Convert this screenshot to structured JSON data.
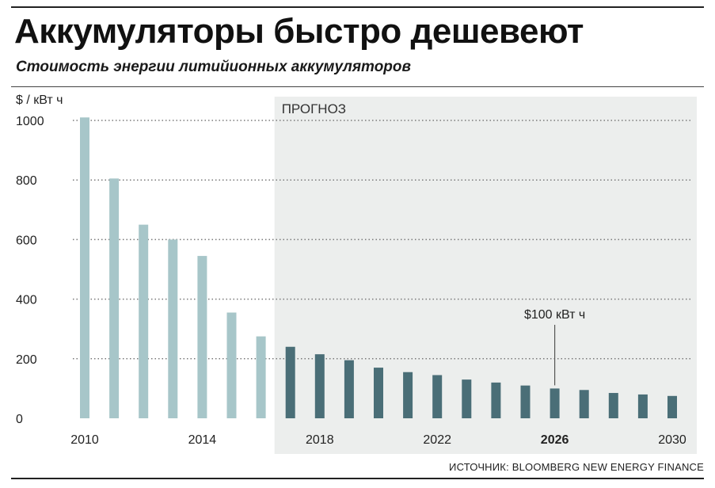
{
  "header": {
    "title": "Аккумуляторы быстро дешевеют",
    "subtitle": "Стоимость энергии литийионных аккумуляторов"
  },
  "footer": {
    "source": "ИСТОЧНИК: BLOOMBERG NEW ENERGY FINANCE"
  },
  "colors": {
    "historical": "#a7c6c9",
    "forecast": "#4a6e77",
    "forecast_background": "#eceeed",
    "grid": "#7a7a7a"
  },
  "chart_data": {
    "type": "bar",
    "title": "Аккумуляторы быстро дешевеют",
    "subtitle": "Стоимость энергии литийионных аккумуляторов",
    "ylabel": "$ / кВт ч",
    "xlabel": "",
    "ylim": [
      0,
      1000
    ],
    "yticks": [
      0,
      200,
      400,
      600,
      800,
      1000
    ],
    "grid": true,
    "categories": [
      2010,
      2011,
      2012,
      2013,
      2014,
      2015,
      2016,
      2017,
      2018,
      2019,
      2020,
      2021,
      2022,
      2023,
      2024,
      2025,
      2026,
      2027,
      2028,
      2029,
      2030
    ],
    "values": [
      1010,
      805,
      650,
      600,
      545,
      355,
      275,
      240,
      215,
      195,
      170,
      155,
      145,
      130,
      120,
      110,
      100,
      95,
      85,
      80,
      75
    ],
    "x_tick_labels": [
      {
        "year": 2010,
        "label": "2010",
        "bold": false
      },
      {
        "year": 2014,
        "label": "2014",
        "bold": false
      },
      {
        "year": 2018,
        "label": "2018",
        "bold": false
      },
      {
        "year": 2022,
        "label": "2022",
        "bold": false
      },
      {
        "year": 2026,
        "label": "2026",
        "bold": true
      },
      {
        "year": 2030,
        "label": "2030",
        "bold": false
      }
    ],
    "forecast_from": 2017,
    "forecast_label": "ПРОГНОЗ",
    "annotation": {
      "year": 2026,
      "text": "$100 кВт ч"
    }
  }
}
